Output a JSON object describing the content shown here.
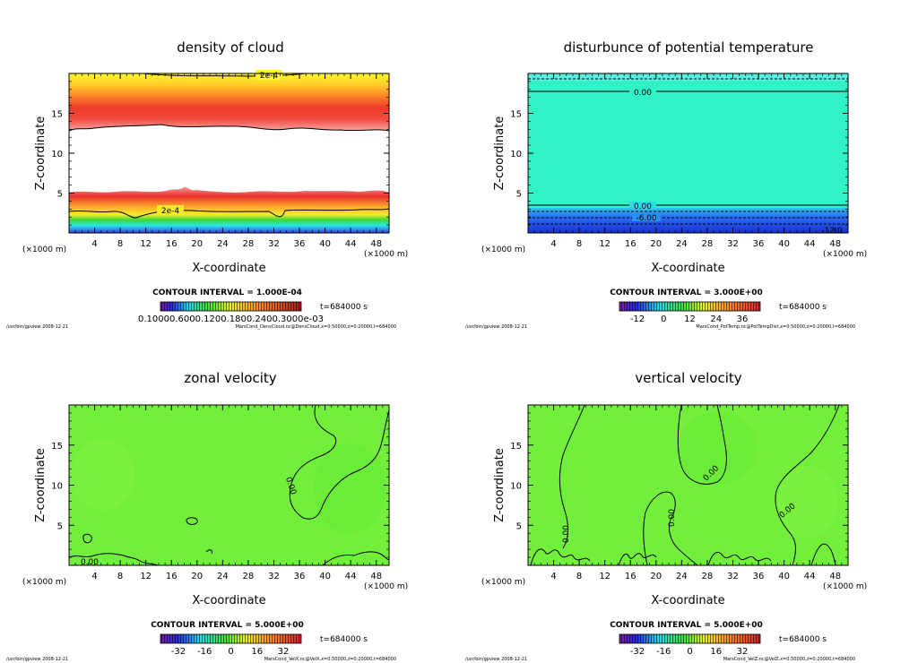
{
  "chart_data": [
    {
      "type": "heatmap",
      "title": "density of cloud",
      "xlabel": "X-coordinate",
      "ylabel": "Z-coordinate",
      "x_scale": "(×1000 m)",
      "z_scale": "(×1000 m)",
      "xlim": [
        0,
        50
      ],
      "ylim": [
        0,
        20
      ],
      "x_ticks": [
        "4",
        "8",
        "12",
        "16",
        "20",
        "24",
        "28",
        "32",
        "36",
        "40",
        "44",
        "48"
      ],
      "y_ticks": [
        "5",
        "10",
        "15"
      ],
      "contour_interval": "CONTOUR INTERVAL = 1.000E-04",
      "time": "t=684000 s",
      "contour_labels": [
        "2e-4",
        "2e-4"
      ],
      "colorbar_labels": "0.10000.6000.1200.1800.2400.3000e-03",
      "footer_left": "/usr/bin/gpview 2008-12-21",
      "footer_right": "MarsCond_DensCloud.nc@DensCloud,x=0:50000,z=0:20000,t=684000"
    },
    {
      "type": "heatmap",
      "title": "disturbunce of potential temperature",
      "xlabel": "X-coordinate",
      "ylabel": "Z-coordinate",
      "x_scale": "(×1000 m)",
      "z_scale": "(×1000 m)",
      "xlim": [
        0,
        50
      ],
      "ylim": [
        0,
        20
      ],
      "x_ticks": [
        "4",
        "8",
        "12",
        "16",
        "20",
        "24",
        "28",
        "32",
        "36",
        "40",
        "44",
        "48"
      ],
      "y_ticks": [
        "5",
        "10",
        "15"
      ],
      "contour_interval": "CONTOUR INTERVAL = 3.000E+00",
      "time": "t=684000 s",
      "contour_labels": [
        "0.00",
        "0.00",
        "-6.00",
        "-12.0"
      ],
      "colorbar_ticks": [
        "-12",
        "0",
        "12",
        "24",
        "36"
      ],
      "footer_left": "/usr/bin/gpview 2008-12-21",
      "footer_right": "MarsCond_PotTemp.nc@PotTempDist,x=0:50000,z=0:20000,t=684000"
    },
    {
      "type": "heatmap",
      "title": "zonal velocity",
      "xlabel": "X-coordinate",
      "ylabel": "Z-coordinate",
      "x_scale": "(×1000 m)",
      "z_scale": "(×1000 m)",
      "xlim": [
        0,
        50
      ],
      "ylim": [
        0,
        20
      ],
      "x_ticks": [
        "4",
        "8",
        "12",
        "16",
        "20",
        "24",
        "28",
        "32",
        "36",
        "40",
        "44",
        "48"
      ],
      "y_ticks": [
        "5",
        "10",
        "15"
      ],
      "contour_interval": "CONTOUR INTERVAL = 5.000E+00",
      "time": "t=684000 s",
      "contour_labels": [
        "0.00",
        "0.00"
      ],
      "colorbar_ticks": [
        "-32",
        "-16",
        "0",
        "16",
        "32"
      ],
      "footer_left": "/usr/bin/gpview 2008-12-21",
      "footer_right": "MarsCond_VelX.nc@VelX,x=0:50000,z=0:20000,t=684000"
    },
    {
      "type": "heatmap",
      "title": "vertical velocity",
      "xlabel": "X-coordinate",
      "ylabel": "Z-coordinate",
      "x_scale": "(×1000 m)",
      "z_scale": "(×1000 m)",
      "xlim": [
        0,
        50
      ],
      "ylim": [
        0,
        20
      ],
      "x_ticks": [
        "4",
        "8",
        "12",
        "16",
        "20",
        "24",
        "28",
        "32",
        "36",
        "40",
        "44",
        "48"
      ],
      "y_ticks": [
        "5",
        "10",
        "15"
      ],
      "contour_interval": "CONTOUR INTERVAL = 5.000E+00",
      "time": "t=684000 s",
      "contour_labels": [
        "0.00",
        "0.00",
        "0.00",
        "0.00"
      ],
      "colorbar_ticks": [
        "-32",
        "-16",
        "0",
        "16",
        "32"
      ],
      "footer_left": "/usr/bin/gpview 2008-12-21",
      "footer_right": "MarsCond_VelZ.nc@VelZ,x=0:50000,z=0:20000,t=684000"
    }
  ],
  "colors": {
    "green_field": "#72ef3a",
    "cyan_field": "#30f2c6",
    "cloud_red": "#e7302a",
    "cloud_yellow": "#fff22a"
  }
}
